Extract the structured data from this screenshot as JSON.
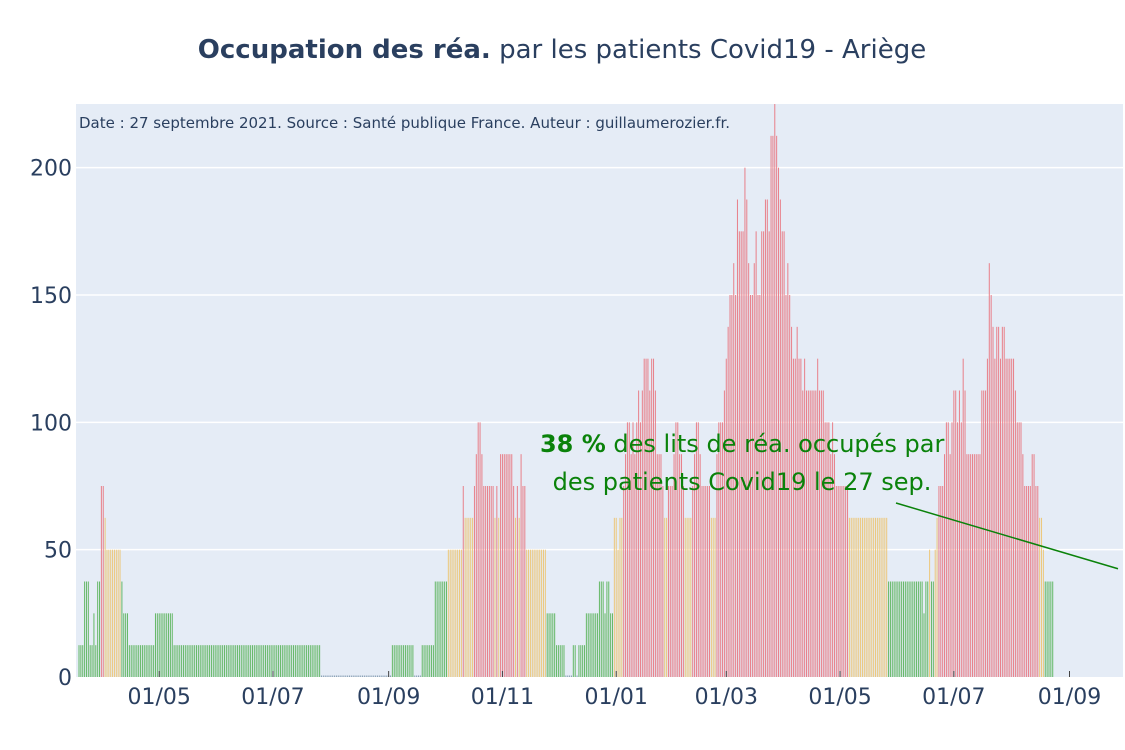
{
  "title": {
    "bold": "Occupation des réa.",
    "rest": " par les patients Covid19 - Ariège"
  },
  "source_note": "Date : 27 septembre 2021. Source : Santé publique France. Auteur : guillaumerozier.fr.",
  "annotation": {
    "percent": "38  %",
    "line1_rest": " des lits de réa. occupés par",
    "line2": "des patients Covid19 le 27 sep.",
    "target_value": 37
  },
  "colors": {
    "plot_bg": "#e5ecf6",
    "grid": "#ffffff",
    "green": "#68b96a",
    "yellow": "#ecc87e",
    "red": "#e8828c",
    "annotation": "#0a820a",
    "title": "#2a3f5f",
    "tick": "#2a3f5f"
  },
  "chart_data": {
    "type": "bar",
    "x_start": "2020-03-19",
    "x_end": "2021-09-27",
    "ylim": [
      0,
      225
    ],
    "x_ticks": [
      {
        "date": "2020-05-01",
        "label": "01/05"
      },
      {
        "date": "2020-07-01",
        "label": "01/07"
      },
      {
        "date": "2020-09-01",
        "label": "01/09"
      },
      {
        "date": "2020-11-01",
        "label": "01/11"
      },
      {
        "date": "2021-01-01",
        "label": "01/01"
      },
      {
        "date": "2021-03-01",
        "label": "01/03"
      },
      {
        "date": "2021-05-01",
        "label": "01/05"
      },
      {
        "date": "2021-07-01",
        "label": "01/07"
      },
      {
        "date": "2021-09-01",
        "label": "01/09"
      }
    ],
    "y_ticks": [
      0,
      50,
      100,
      150,
      200
    ],
    "color_thresholds": {
      "green_below": 40,
      "yellow_below": 75
    },
    "values": [
      12.5,
      12.5,
      12.5,
      37.5,
      37.5,
      37.5,
      12.5,
      12.5,
      25,
      12.5,
      37.5,
      37.5,
      75,
      75,
      62.5,
      50,
      50,
      50,
      50,
      50,
      50,
      50,
      50,
      37.5,
      25,
      25,
      25,
      12.5,
      12.5,
      12.5,
      12.5,
      12.5,
      12.5,
      12.5,
      12.5,
      12.5,
      12.5,
      12.5,
      12.5,
      12.5,
      12.5,
      25,
      25,
      25,
      25,
      25,
      25,
      25,
      25,
      25,
      25,
      12.5,
      12.5,
      12.5,
      12.5,
      12.5,
      12.5,
      12.5,
      12.5,
      12.5,
      12.5,
      12.5,
      12.5,
      12.5,
      12.5,
      12.5,
      12.5,
      12.5,
      12.5,
      12.5,
      12.5,
      12.5,
      12.5,
      12.5,
      12.5,
      12.5,
      12.5,
      12.5,
      12.5,
      12.5,
      12.5,
      12.5,
      12.5,
      12.5,
      12.5,
      12.5,
      12.5,
      12.5,
      12.5,
      12.5,
      12.5,
      12.5,
      12.5,
      12.5,
      12.5,
      12.5,
      12.5,
      12.5,
      12.5,
      12.5,
      12.5,
      12.5,
      12.5,
      12.5,
      12.5,
      12.5,
      12.5,
      12.5,
      12.5,
      12.5,
      12.5,
      12.5,
      12.5,
      12.5,
      12.5,
      12.5,
      12.5,
      12.5,
      12.5,
      12.5,
      12.5,
      12.5,
      12.5,
      12.5,
      12.5,
      12.5,
      12.5,
      12.5,
      12.5,
      12.5,
      0,
      0,
      0,
      0,
      0,
      0,
      0,
      0,
      0,
      0,
      0,
      0,
      0,
      0,
      0,
      0,
      0,
      0,
      0,
      0,
      0,
      0,
      0,
      0,
      0,
      0,
      0,
      0,
      0,
      0,
      0,
      0,
      0,
      0,
      0,
      0,
      0,
      0,
      12.5,
      12.5,
      12.5,
      12.5,
      12.5,
      12.5,
      12.5,
      12.5,
      12.5,
      12.5,
      12.5,
      12.5,
      0,
      0,
      0,
      0,
      12.5,
      12.5,
      12.5,
      12.5,
      12.5,
      12.5,
      12.5,
      37.5,
      37.5,
      37.5,
      37.5,
      37.5,
      37.5,
      37.5,
      50,
      50,
      50,
      50,
      50,
      50,
      50,
      50,
      75,
      62.5,
      62.5,
      62.5,
      62.5,
      62.5,
      75,
      87.5,
      100,
      100,
      87.5,
      75,
      75,
      75,
      75,
      75,
      75,
      62.5,
      75,
      62.5,
      87.5,
      87.5,
      87.5,
      87.5,
      87.5,
      87.5,
      87.5,
      75,
      62.5,
      75,
      62.5,
      87.5,
      75,
      75,
      50,
      50,
      50,
      50,
      50,
      50,
      50,
      50,
      50,
      50,
      50,
      25,
      25,
      25,
      25,
      25,
      12.5,
      12.5,
      12.5,
      12.5,
      12.5,
      0,
      0,
      0,
      0,
      12.5,
      12.5,
      0,
      12.5,
      12.5,
      12.5,
      12.5,
      25,
      25,
      25,
      25,
      25,
      25,
      25,
      37.5,
      37.5,
      37.5,
      25,
      37.5,
      37.5,
      25,
      25,
      62.5,
      62.5,
      50,
      62.5,
      62.5,
      75,
      87.5,
      100,
      100,
      87.5,
      100,
      87.5,
      100,
      112.5,
      100,
      112.5,
      125,
      125,
      125,
      112.5,
      125,
      125,
      112.5,
      87.5,
      87.5,
      87.5,
      75,
      62.5,
      62.5,
      75,
      75,
      75,
      87.5,
      100,
      100,
      87.5,
      87.5,
      75,
      62.5,
      62.5,
      62.5,
      62.5,
      75,
      87.5,
      100,
      100,
      87.5,
      75,
      75,
      75,
      75,
      75,
      62.5,
      62.5,
      62.5,
      87.5,
      100,
      100,
      100,
      112.5,
      125,
      137.5,
      150,
      150,
      162.5,
      150,
      187.5,
      175,
      175,
      175,
      200,
      187.5,
      162.5,
      150,
      150,
      162.5,
      175,
      150,
      150,
      175,
      175,
      187.5,
      187.5,
      175,
      212.5,
      212.5,
      225,
      212.5,
      200,
      187.5,
      175,
      175,
      150,
      162.5,
      150,
      137.5,
      125,
      125,
      137.5,
      125,
      125,
      112.5,
      125,
      112.5,
      112.5,
      112.5,
      112.5,
      112.5,
      112.5,
      125,
      112.5,
      112.5,
      112.5,
      100,
      100,
      100,
      87.5,
      100,
      87.5,
      75,
      75,
      75,
      75,
      75,
      75,
      75,
      62.5,
      62.5,
      62.5,
      62.5,
      62.5,
      62.5,
      62.5,
      62.5,
      62.5,
      62.5,
      62.5,
      62.5,
      62.5,
      62.5,
      62.5,
      62.5,
      62.5,
      62.5,
      62.5,
      62.5,
      62.5,
      37.5,
      37.5,
      37.5,
      37.5,
      37.5,
      37.5,
      37.5,
      37.5,
      37.5,
      37.5,
      37.5,
      37.5,
      37.5,
      37.5,
      37.5,
      37.5,
      37.5,
      37.5,
      37.5,
      25,
      37.5,
      37.5,
      50,
      37.5,
      37.5,
      50,
      62.5,
      75,
      75,
      75,
      87.5,
      100,
      100,
      87.5,
      100,
      112.5,
      112.5,
      100,
      112.5,
      100,
      125,
      112.5,
      87.5,
      87.5,
      87.5,
      87.5,
      87.5,
      87.5,
      87.5,
      87.5,
      112.5,
      112.5,
      112.5,
      125,
      162.5,
      150,
      137.5,
      125,
      137.5,
      137.5,
      125,
      137.5,
      137.5,
      125,
      125,
      125,
      125,
      125,
      112.5,
      100,
      100,
      100,
      87.5,
      75,
      75,
      75,
      75,
      87.5,
      87.5,
      75,
      75,
      62.5,
      62.5,
      50,
      37.5,
      37.5,
      37.5,
      37.5,
      37.5
    ]
  }
}
